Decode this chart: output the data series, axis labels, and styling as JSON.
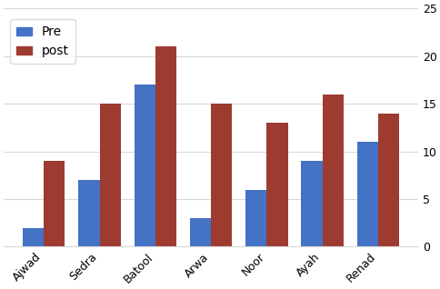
{
  "categories": [
    "Ajwad",
    "Sedra",
    "Batool",
    "Arwa",
    "Noor",
    "Ayah",
    "Renad"
  ],
  "pre": [
    2,
    7,
    17,
    3,
    6,
    9,
    11
  ],
  "post": [
    9,
    15,
    21,
    15,
    13,
    16,
    14
  ],
  "pre_color": "#4472c4",
  "post_color": "#9e3b31",
  "ylim": [
    0,
    25
  ],
  "yticks": [
    0,
    5,
    10,
    15,
    20,
    25
  ],
  "legend_labels": [
    "Pre",
    "post"
  ],
  "bar_width": 0.38,
  "background_color": "#ffffff",
  "grid_color": "#d9d9d9",
  "title": ""
}
